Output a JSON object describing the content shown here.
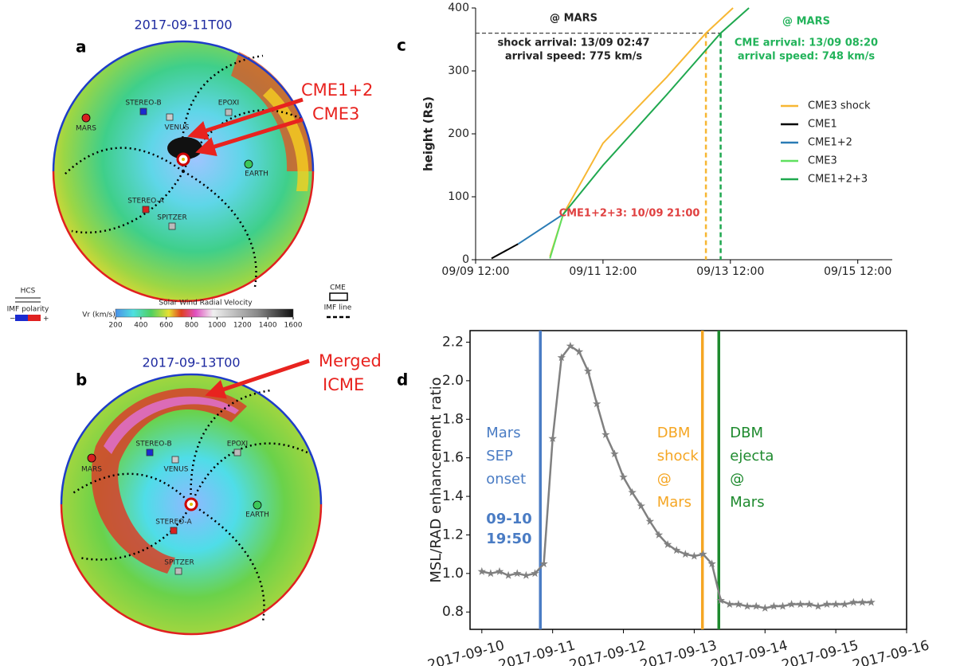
{
  "panels": [
    {
      "label": "a",
      "title": "2017-09-11T00",
      "bodies": [
        "MARS",
        "STEREO-B",
        "EPOXI",
        "VENUS",
        "EARTH",
        "STEREO-A",
        "SPITZER"
      ],
      "annotations": [
        "CME1+2",
        "CME3"
      ]
    },
    {
      "label": "b",
      "title": "2017-09-13T00",
      "bodies": [
        "MARS",
        "STEREO-B",
        "EPOXI",
        "VENUS",
        "EARTH",
        "STEREO-A",
        "SPITZER"
      ],
      "annotations": [
        "Merged",
        "ICME"
      ]
    }
  ],
  "legend": {
    "hcs": "HCS",
    "imf_polarity": "IMF polarity",
    "minus": "−",
    "plus": "+",
    "cme": "CME",
    "imf_line": "IMF line"
  },
  "colorbar": {
    "title": "Solar Wind Radial Velocity",
    "label": "Vr (km/s)",
    "lim": [
      200,
      1600
    ],
    "ticks": [
      200,
      400,
      600,
      800,
      1000,
      1200,
      1400,
      1600
    ]
  },
  "chart_data": [
    {
      "label": "c",
      "type": "line",
      "ylabel": "height (Rs)",
      "xlim": [
        "09-09T12:00",
        "09-16T01:00"
      ],
      "xticks": [
        {
          "value": "09-09T12:00",
          "label": "09/09 12:00"
        },
        {
          "value": "09-11T12:00",
          "label": "09/11 12:00"
        },
        {
          "value": "09-13T12:00",
          "label": "09/13 12:00"
        },
        {
          "value": "09-15T12:00",
          "label": "09/15 12:00"
        }
      ],
      "ylim": [
        0,
        400
      ],
      "yticks": [
        0,
        100,
        200,
        300,
        400
      ],
      "legend": "center right",
      "series": [
        {
          "name": "CME3 shock",
          "color": "#f7b733",
          "x": [
            "09-10T16:00",
            "09-10T21:00",
            "09-11T12:00",
            "09-12T12:00",
            "09-13T02:47",
            "09-13T13:00"
          ],
          "values": [
            5,
            72,
            185,
            290,
            360,
            400
          ]
        },
        {
          "name": "CME1",
          "color": "#000000",
          "x": [
            "09-09T18:00",
            "09-10T04:00"
          ],
          "values": [
            2,
            25
          ]
        },
        {
          "name": "CME1+2",
          "color": "#2a7bb5",
          "x": [
            "09-10T04:00",
            "09-10T21:00"
          ],
          "values": [
            25,
            72
          ]
        },
        {
          "name": "CME3",
          "color": "#5fe05f",
          "x": [
            "09-10T16:00",
            "09-10T21:00"
          ],
          "values": [
            2,
            72
          ]
        },
        {
          "name": "CME1+2+3",
          "color": "#1fa84f",
          "x": [
            "09-10T21:00",
            "09-11T12:00",
            "09-12T12:00",
            "09-13T08:20",
            "09-13T19:00"
          ],
          "values": [
            72,
            150,
            262,
            360,
            400
          ]
        }
      ],
      "reference_height": 360,
      "markers": [
        {
          "x": "09-13T02:47",
          "color": "#f7b733"
        },
        {
          "x": "09-13T08:20",
          "color": "#1fa84f"
        }
      ],
      "annotations": [
        {
          "lines": [
            "@ MARS",
            "shock arrival: 13/09 02:47",
            "arrival speed: 775 km/s"
          ],
          "color": "#222222"
        },
        {
          "lines": [
            "@ MARS",
            "CME arrival: 13/09 08:20",
            "arrival speed: 748 km/s"
          ],
          "color": "#22b35a"
        },
        {
          "lines": [
            "CME1+2+3: 10/09 21:00"
          ],
          "color": "#e04040"
        }
      ]
    },
    {
      "label": "d",
      "type": "line",
      "ylabel": "MSL/RAD enhancement ratio",
      "xlim": [
        "2017-09-09T20:00",
        "2017-09-16T00:00"
      ],
      "xticks": [
        "2017-09-10",
        "2017-09-11",
        "2017-09-12",
        "2017-09-13",
        "2017-09-14",
        "2017-09-15",
        "2017-09-16"
      ],
      "ylim": [
        0.71,
        2.26
      ],
      "yticks": [
        0.8,
        {
          "value": 1,
          "label": "1.0"
        },
        1.2,
        1.4,
        1.6,
        1.8,
        {
          "value": 2,
          "label": "2.0"
        },
        2.2
      ],
      "series": [
        {
          "color": "#808080",
          "marker": "star",
          "x": [
            "2017-09-10T00:00",
            "2017-09-10T03:00",
            "2017-09-10T06:00",
            "2017-09-10T09:00",
            "2017-09-10T12:00",
            "2017-09-10T15:00",
            "2017-09-10T18:00",
            "2017-09-10T21:00",
            "2017-09-11T00:00",
            "2017-09-11T03:00",
            "2017-09-11T06:00",
            "2017-09-11T09:00",
            "2017-09-11T12:00",
            "2017-09-11T15:00",
            "2017-09-11T18:00",
            "2017-09-11T21:00",
            "2017-09-12T00:00",
            "2017-09-12T03:00",
            "2017-09-12T06:00",
            "2017-09-12T09:00",
            "2017-09-12T12:00",
            "2017-09-12T15:00",
            "2017-09-12T18:00",
            "2017-09-12T21:00",
            "2017-09-13T00:00",
            "2017-09-13T03:00",
            "2017-09-13T06:00",
            "2017-09-13T09:00",
            "2017-09-13T12:00",
            "2017-09-13T15:00",
            "2017-09-13T18:00",
            "2017-09-13T21:00",
            "2017-09-14T00:00",
            "2017-09-14T03:00",
            "2017-09-14T06:00",
            "2017-09-14T09:00",
            "2017-09-14T12:00",
            "2017-09-14T15:00",
            "2017-09-14T18:00",
            "2017-09-14T21:00",
            "2017-09-15T00:00",
            "2017-09-15T03:00",
            "2017-09-15T06:00",
            "2017-09-15T09:00",
            "2017-09-15T12:00"
          ],
          "values": [
            1.01,
            1.0,
            1.01,
            0.99,
            1.0,
            0.99,
            1.0,
            1.05,
            1.7,
            2.12,
            2.18,
            2.15,
            2.05,
            1.88,
            1.72,
            1.62,
            1.5,
            1.42,
            1.35,
            1.27,
            1.2,
            1.15,
            1.12,
            1.1,
            1.09,
            1.1,
            1.05,
            0.86,
            0.84,
            0.84,
            0.83,
            0.83,
            0.82,
            0.83,
            0.83,
            0.84,
            0.84,
            0.84,
            0.83,
            0.84,
            0.84,
            0.84,
            0.85,
            0.85,
            0.85
          ]
        }
      ],
      "events": [
        {
          "x": "2017-09-10T19:50",
          "color": "#4a7cc4",
          "label": [
            "Mars",
            "SEP",
            "onset"
          ],
          "time_label": [
            "09-10",
            "19:50"
          ]
        },
        {
          "x": "2017-09-13T02:47",
          "color": "#f5a623",
          "label": [
            "DBM",
            "shock",
            "@",
            "Mars"
          ]
        },
        {
          "x": "2017-09-13T08:20",
          "color": "#1e8a2e",
          "label": [
            "DBM",
            "ejecta",
            "@",
            "Mars"
          ]
        }
      ]
    }
  ]
}
